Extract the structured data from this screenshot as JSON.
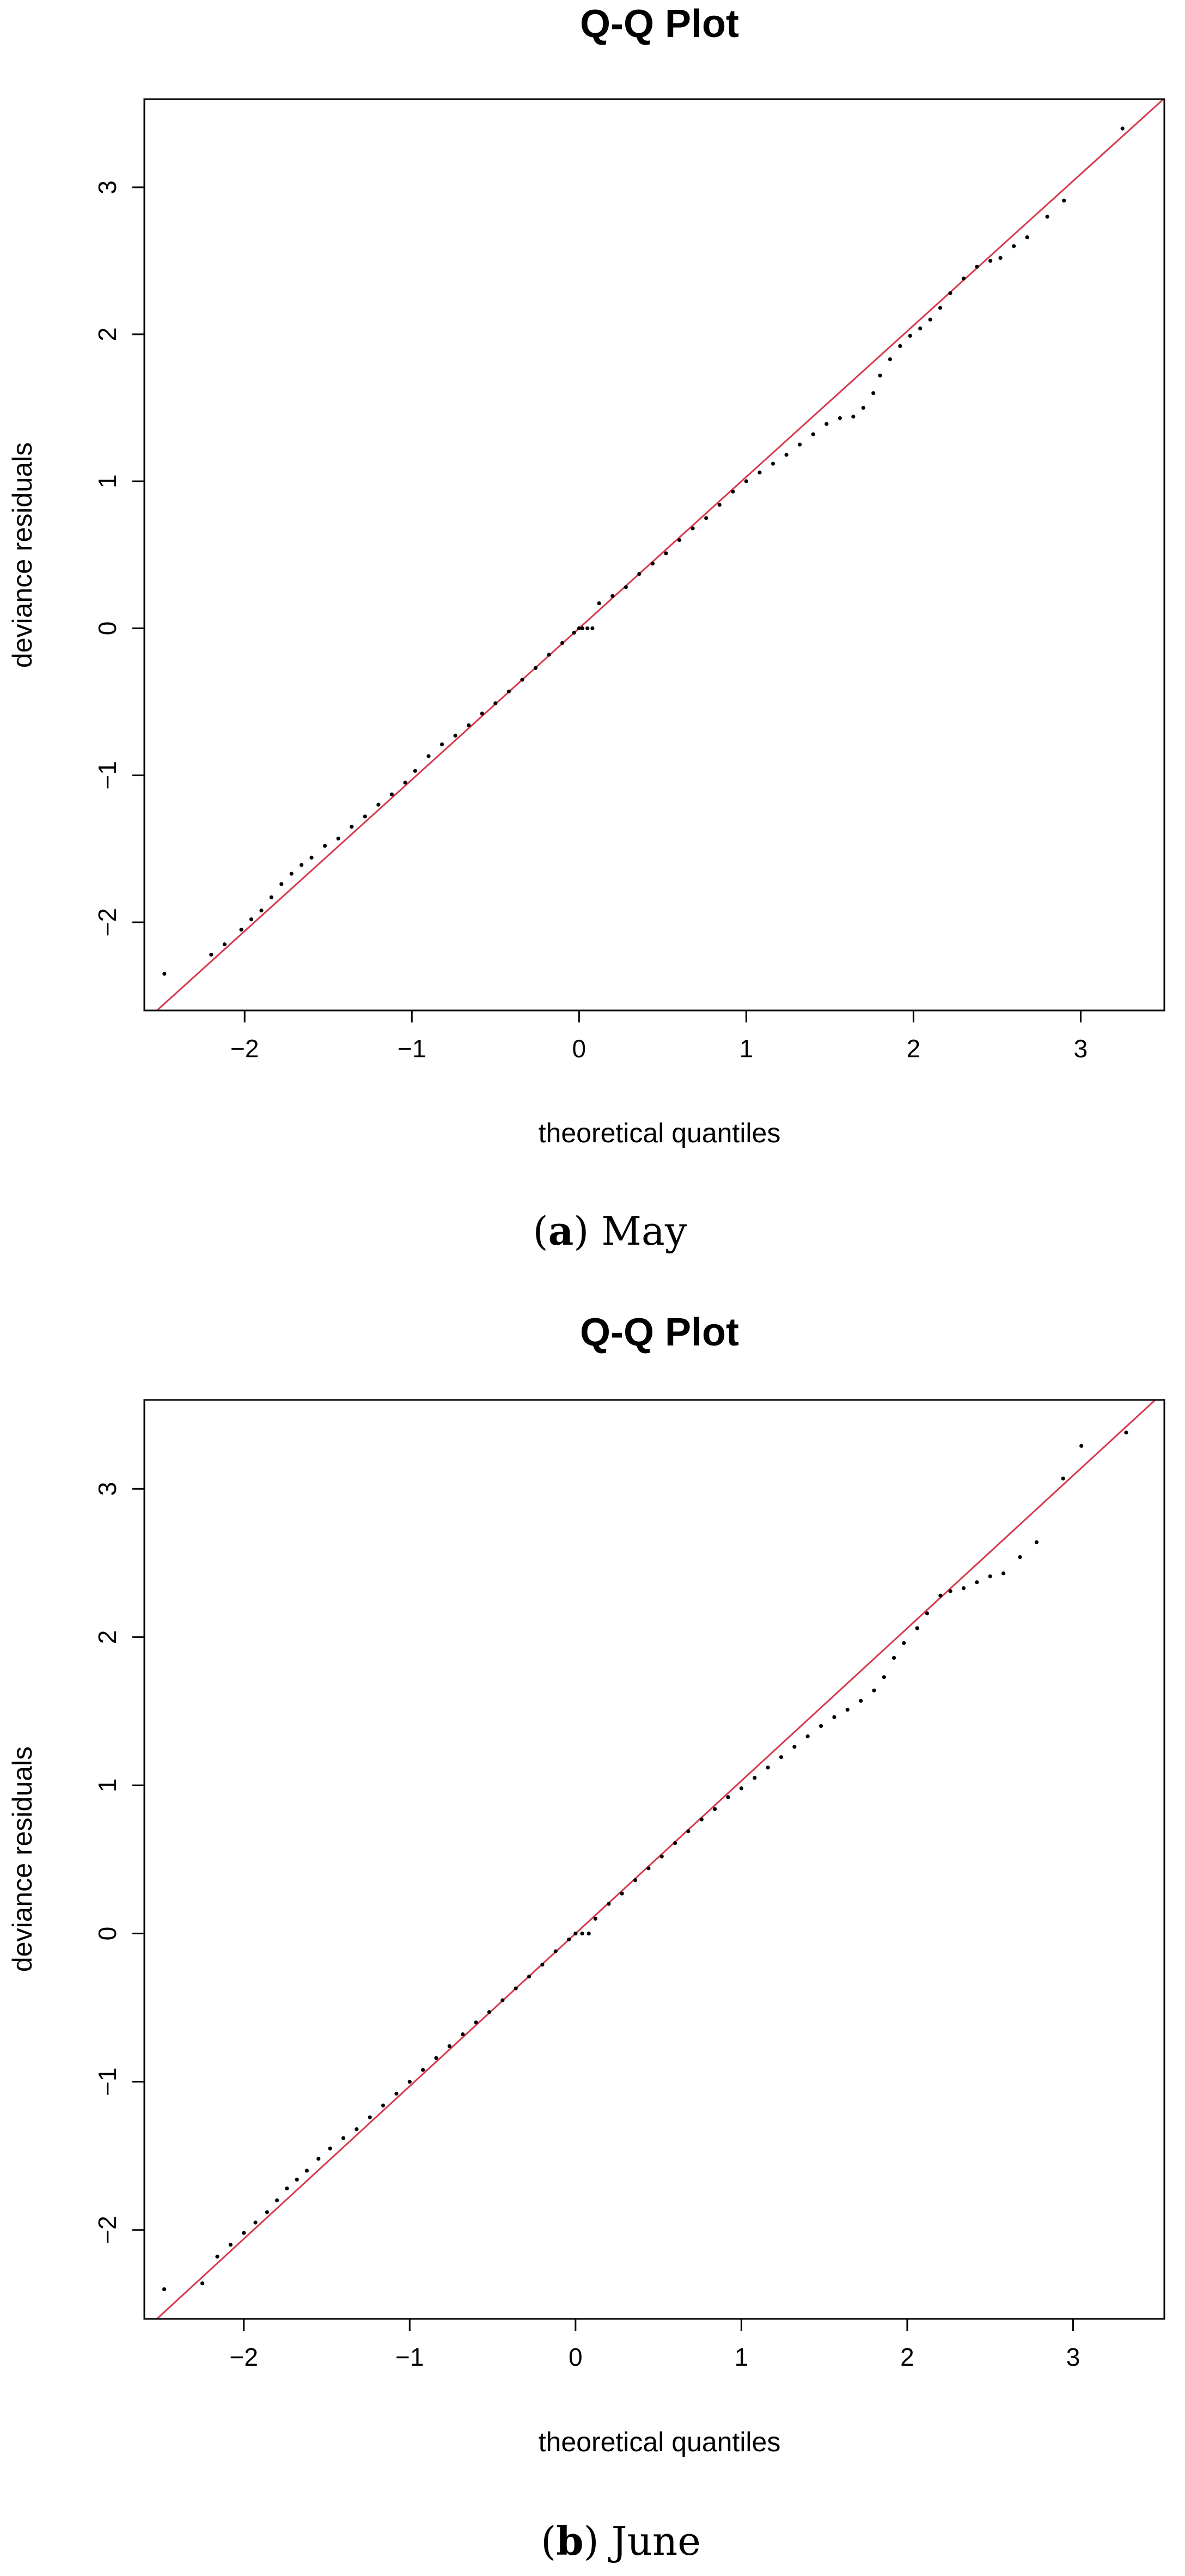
{
  "chart_data": [
    {
      "type": "scatter",
      "title": "Q-Q Plot",
      "xlabel": "theoretical quantiles",
      "ylabel": "deviance residuals",
      "caption": {
        "open": "(",
        "letter": "a",
        "close": ")",
        "text": " May"
      },
      "xlim": [
        -2.6,
        3.5
      ],
      "ylim": [
        -2.6,
        3.6
      ],
      "x_ticks": [
        -2,
        -1,
        0,
        1,
        2,
        3
      ],
      "y_ticks": [
        -2,
        -1,
        0,
        1,
        2,
        3
      ],
      "x_tick_labels": [
        "−2",
        "−1",
        "0",
        "1",
        "2",
        "3"
      ],
      "y_tick_labels": [
        "−2",
        "−1",
        "0",
        "1",
        "2",
        "3"
      ],
      "grid": false,
      "colors": {
        "points": "#000000",
        "reference_line": "#d6384b"
      },
      "reference_line": {
        "intercept": 0.0,
        "slope": 1.03
      },
      "points": [
        [
          -2.48,
          -2.35
        ],
        [
          -2.2,
          -2.22
        ],
        [
          -2.12,
          -2.15
        ],
        [
          -2.02,
          -2.05
        ],
        [
          -1.96,
          -1.98
        ],
        [
          -1.9,
          -1.92
        ],
        [
          -1.84,
          -1.83
        ],
        [
          -1.78,
          -1.74
        ],
        [
          -1.72,
          -1.67
        ],
        [
          -1.66,
          -1.61
        ],
        [
          -1.6,
          -1.56
        ],
        [
          -1.52,
          -1.48
        ],
        [
          -1.44,
          -1.43
        ],
        [
          -1.36,
          -1.35
        ],
        [
          -1.28,
          -1.28
        ],
        [
          -1.2,
          -1.2
        ],
        [
          -1.12,
          -1.13
        ],
        [
          -1.04,
          -1.05
        ],
        [
          -0.98,
          -0.97
        ],
        [
          -0.9,
          -0.87
        ],
        [
          -0.82,
          -0.79
        ],
        [
          -0.74,
          -0.73
        ],
        [
          -0.66,
          -0.66
        ],
        [
          -0.58,
          -0.58
        ],
        [
          -0.5,
          -0.51
        ],
        [
          -0.42,
          -0.43
        ],
        [
          -0.34,
          -0.35
        ],
        [
          -0.26,
          -0.27
        ],
        [
          -0.18,
          -0.18
        ],
        [
          -0.1,
          -0.1
        ],
        [
          -0.03,
          -0.03
        ],
        [
          0.0,
          0.0
        ],
        [
          0.02,
          0.0
        ],
        [
          0.05,
          0.0
        ],
        [
          0.08,
          0.0
        ],
        [
          0.12,
          0.17
        ],
        [
          0.2,
          0.22
        ],
        [
          0.28,
          0.28
        ],
        [
          0.36,
          0.37
        ],
        [
          0.44,
          0.44
        ],
        [
          0.52,
          0.51
        ],
        [
          0.6,
          0.6
        ],
        [
          0.68,
          0.68
        ],
        [
          0.76,
          0.75
        ],
        [
          0.84,
          0.84
        ],
        [
          0.92,
          0.93
        ],
        [
          1.0,
          1.0
        ],
        [
          1.08,
          1.06
        ],
        [
          1.16,
          1.12
        ],
        [
          1.24,
          1.18
        ],
        [
          1.32,
          1.25
        ],
        [
          1.4,
          1.32
        ],
        [
          1.48,
          1.39
        ],
        [
          1.56,
          1.43
        ],
        [
          1.64,
          1.44
        ],
        [
          1.7,
          1.5
        ],
        [
          1.76,
          1.6
        ],
        [
          1.8,
          1.72
        ],
        [
          1.86,
          1.83
        ],
        [
          1.92,
          1.92
        ],
        [
          1.98,
          1.99
        ],
        [
          2.04,
          2.04
        ],
        [
          2.1,
          2.1
        ],
        [
          2.16,
          2.18
        ],
        [
          2.22,
          2.28
        ],
        [
          2.3,
          2.38
        ],
        [
          2.38,
          2.46
        ],
        [
          2.46,
          2.5
        ],
        [
          2.52,
          2.52
        ],
        [
          2.6,
          2.6
        ],
        [
          2.68,
          2.66
        ],
        [
          2.8,
          2.8
        ],
        [
          2.9,
          2.91
        ],
        [
          3.25,
          3.4
        ]
      ]
    },
    {
      "type": "scatter",
      "title": "Q-Q Plot",
      "xlabel": "theoretical quantiles",
      "ylabel": "deviance residuals",
      "caption": {
        "open": "(",
        "letter": "b",
        "close": ")",
        "text": " June"
      },
      "xlim": [
        -2.6,
        3.55
      ],
      "ylim": [
        -2.6,
        3.6
      ],
      "x_ticks": [
        -2,
        -1,
        0,
        1,
        2,
        3
      ],
      "y_ticks": [
        -2,
        -1,
        0,
        1,
        2,
        3
      ],
      "x_tick_labels": [
        "−2",
        "−1",
        "0",
        "1",
        "2",
        "3"
      ],
      "y_tick_labels": [
        "−2",
        "−1",
        "0",
        "1",
        "2",
        "3"
      ],
      "grid": false,
      "colors": {
        "points": "#000000",
        "reference_line": "#d6384b"
      },
      "reference_line": {
        "intercept": 0.0,
        "slope": 1.03
      },
      "points": [
        [
          -2.48,
          -2.4
        ],
        [
          -2.25,
          -2.36
        ],
        [
          -2.16,
          -2.18
        ],
        [
          -2.08,
          -2.1
        ],
        [
          -2.0,
          -2.02
        ],
        [
          -1.93,
          -1.95
        ],
        [
          -1.86,
          -1.88
        ],
        [
          -1.8,
          -1.8
        ],
        [
          -1.74,
          -1.72
        ],
        [
          -1.68,
          -1.66
        ],
        [
          -1.62,
          -1.6
        ],
        [
          -1.55,
          -1.52
        ],
        [
          -1.48,
          -1.45
        ],
        [
          -1.4,
          -1.38
        ],
        [
          -1.32,
          -1.32
        ],
        [
          -1.24,
          -1.24
        ],
        [
          -1.16,
          -1.16
        ],
        [
          -1.08,
          -1.08
        ],
        [
          -1.0,
          -1.0
        ],
        [
          -0.92,
          -0.92
        ],
        [
          -0.84,
          -0.84
        ],
        [
          -0.76,
          -0.76
        ],
        [
          -0.68,
          -0.68
        ],
        [
          -0.6,
          -0.6
        ],
        [
          -0.52,
          -0.53
        ],
        [
          -0.44,
          -0.45
        ],
        [
          -0.36,
          -0.37
        ],
        [
          -0.28,
          -0.29
        ],
        [
          -0.2,
          -0.21
        ],
        [
          -0.12,
          -0.12
        ],
        [
          -0.04,
          -0.04
        ],
        [
          0.0,
          0.0
        ],
        [
          0.04,
          0.0
        ],
        [
          0.08,
          0.0
        ],
        [
          0.12,
          0.1
        ],
        [
          0.2,
          0.2
        ],
        [
          0.28,
          0.27
        ],
        [
          0.36,
          0.36
        ],
        [
          0.44,
          0.44
        ],
        [
          0.52,
          0.52
        ],
        [
          0.6,
          0.61
        ],
        [
          0.68,
          0.69
        ],
        [
          0.76,
          0.77
        ],
        [
          0.84,
          0.84
        ],
        [
          0.92,
          0.92
        ],
        [
          1.0,
          0.98
        ],
        [
          1.08,
          1.05
        ],
        [
          1.16,
          1.12
        ],
        [
          1.24,
          1.19
        ],
        [
          1.32,
          1.26
        ],
        [
          1.4,
          1.33
        ],
        [
          1.48,
          1.4
        ],
        [
          1.56,
          1.46
        ],
        [
          1.64,
          1.51
        ],
        [
          1.72,
          1.57
        ],
        [
          1.8,
          1.64
        ],
        [
          1.86,
          1.73
        ],
        [
          1.92,
          1.86
        ],
        [
          1.98,
          1.96
        ],
        [
          2.06,
          2.06
        ],
        [
          2.12,
          2.16
        ],
        [
          2.2,
          2.28
        ],
        [
          2.26,
          2.31
        ],
        [
          2.34,
          2.33
        ],
        [
          2.42,
          2.37
        ],
        [
          2.5,
          2.41
        ],
        [
          2.58,
          2.43
        ],
        [
          2.68,
          2.54
        ],
        [
          2.78,
          2.64
        ],
        [
          2.94,
          3.07
        ],
        [
          3.05,
          3.29
        ],
        [
          3.32,
          3.38
        ]
      ]
    }
  ]
}
